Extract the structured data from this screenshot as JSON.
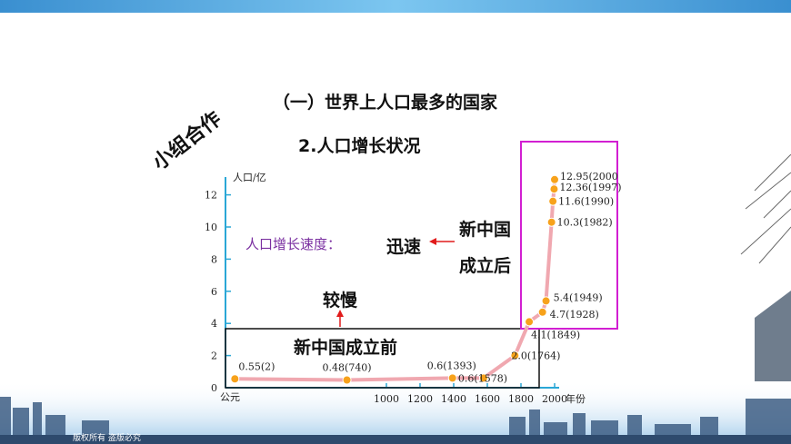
{
  "slide": {
    "heading": "（一）世界上人口最多的国家",
    "subheading": "2.人口增长状况",
    "side_label": "小组合作",
    "footer_text": "版权所有 盗版必究",
    "colors": {
      "background": "#ffffff",
      "top_strip": "#4aa3df",
      "speed_label": "#7a2fa0",
      "arrow_red": "#e11b1b",
      "magenta_box": "#d21fd2",
      "axis": "#2aa7d6",
      "line": "#f0a8b0",
      "marker": "#f7a21b"
    }
  },
  "annotations": {
    "speed_label": "人口增长速度：",
    "fast": "迅速",
    "after_1": "新中国",
    "after_2": "成立后",
    "slow": "较慢",
    "before": "新中国成立前"
  },
  "chart_data": {
    "type": "line",
    "ylabel": "人口/亿",
    "xlabel": "年份",
    "x_origin_label": "公元",
    "y_ticks": [
      0,
      2,
      4,
      6,
      8,
      10,
      12
    ],
    "x_ticks": [
      1000,
      1200,
      1400,
      1600,
      1800,
      2000
    ],
    "ylim": [
      0,
      13
    ],
    "points": [
      {
        "x": 2,
        "y": 0.55,
        "label": "0.55(2)"
      },
      {
        "x": 740,
        "y": 0.48,
        "label": "0.48(740)"
      },
      {
        "x": 1393,
        "y": 0.6,
        "label": "0.6(1393)"
      },
      {
        "x": 1578,
        "y": 0.6,
        "label": "0.6(1578)"
      },
      {
        "x": 1764,
        "y": 2.0,
        "label": "2.0(1764)"
      },
      {
        "x": 1849,
        "y": 4.1,
        "label": "4.1(1849)"
      },
      {
        "x": 1928,
        "y": 4.7,
        "label": "4.7(1928)"
      },
      {
        "x": 1949,
        "y": 5.4,
        "label": "5.4(1949)"
      },
      {
        "x": 1982,
        "y": 10.3,
        "label": "10.3(1982)"
      },
      {
        "x": 1990,
        "y": 11.6,
        "label": "11.6(1990)"
      },
      {
        "x": 1997,
        "y": 12.36,
        "label": "12.36(1997)"
      },
      {
        "x": 2000,
        "y": 12.95,
        "label": "12.95(2000"
      }
    ]
  }
}
